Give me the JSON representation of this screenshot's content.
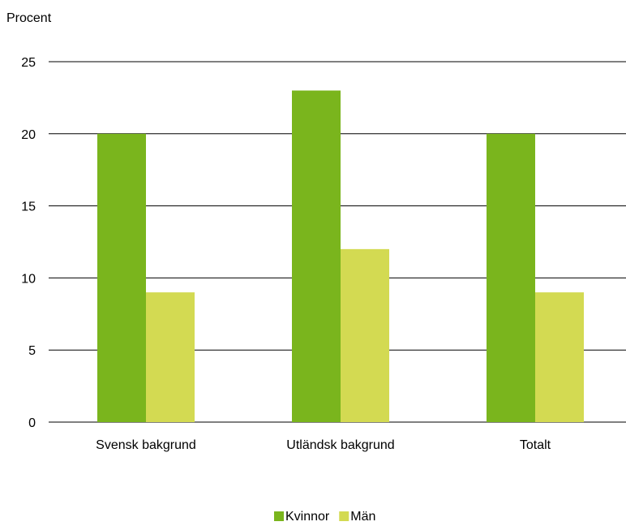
{
  "chart_data": {
    "type": "bar",
    "ylabel": "Procent",
    "categories": [
      "Svensk bakgrund",
      "Utländsk bakgrund",
      "Totalt"
    ],
    "series": [
      {
        "name": "Kvinnor",
        "color": "#7ab51d",
        "values": [
          20,
          23,
          20
        ]
      },
      {
        "name": "Män",
        "color": "#d3da52",
        "values": [
          9,
          12,
          9
        ]
      }
    ],
    "ylim": [
      0,
      25
    ],
    "yticks": [
      0,
      5,
      10,
      15,
      20,
      25
    ],
    "grid": true,
    "legend_position": "bottom-center"
  }
}
